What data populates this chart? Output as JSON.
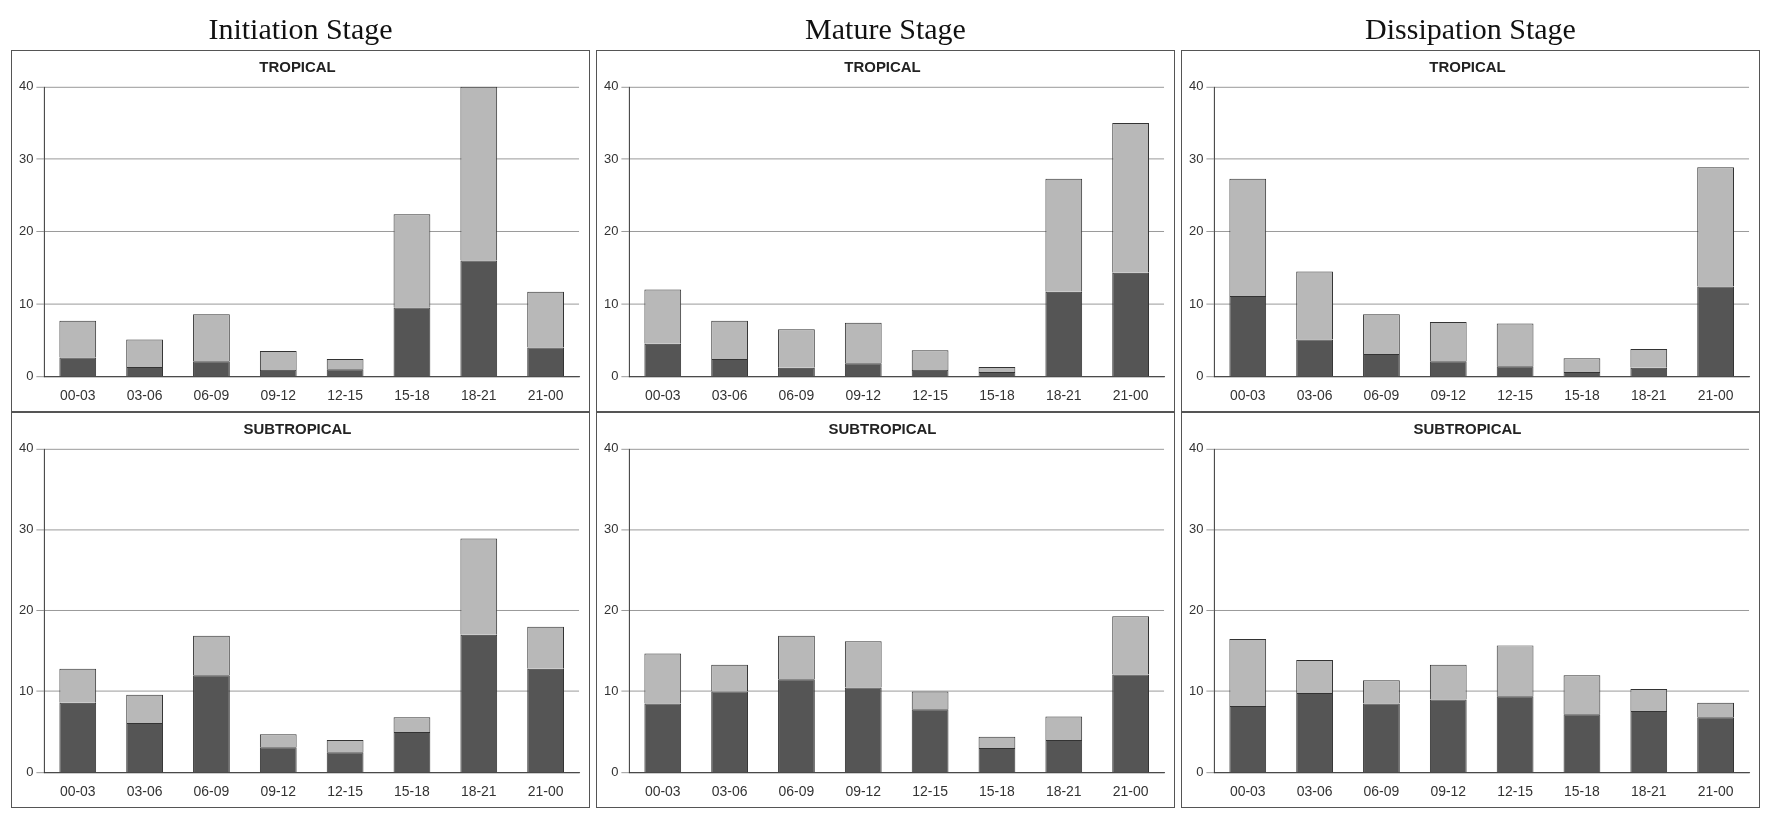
{
  "chart_data": [
    {
      "type": "bar",
      "title": "Initiation Stage",
      "subtitle": "TROPICAL",
      "stacked": true,
      "categories": [
        "00-03",
        "03-06",
        "06-09",
        "09-12",
        "12-15",
        "15-18",
        "18-21",
        "21-00"
      ],
      "series": [
        {
          "color": "#555555",
          "values": [
            2.6,
            1.3,
            2.1,
            0.9,
            1.0,
            9.5,
            16,
            4.0
          ]
        },
        {
          "color": "#b8b8b8",
          "values": [
            5.1,
            3.8,
            6.5,
            2.6,
            1.4,
            12.9,
            24,
            7.7
          ]
        }
      ],
      "ylim": [
        0,
        40
      ],
      "yticks": [
        0,
        10,
        20,
        30,
        40
      ],
      "grid": "y"
    },
    {
      "type": "bar",
      "title": "Mature Stage",
      "subtitle": "TROPICAL",
      "stacked": true,
      "categories": [
        "00-03",
        "03-06",
        "06-09",
        "09-12",
        "12-15",
        "15-18",
        "18-21",
        "21-00"
      ],
      "series": [
        {
          "color": "#555555",
          "values": [
            4.5,
            2.4,
            1.2,
            1.8,
            0.9,
            0.6,
            11.7,
            14.3
          ]
        },
        {
          "color": "#b8b8b8",
          "values": [
            7.5,
            5.3,
            5.3,
            5.6,
            2.7,
            0.7,
            15.6,
            20.7
          ]
        }
      ],
      "ylim": [
        0,
        40
      ],
      "yticks": [
        0,
        10,
        20,
        30,
        40
      ],
      "grid": "y"
    },
    {
      "type": "bar",
      "title": "Dissipation Stage",
      "subtitle": "TROPICAL",
      "stacked": true,
      "categories": [
        "00-03",
        "03-06",
        "06-09",
        "09-12",
        "12-15",
        "15-18",
        "18-21",
        "21-00"
      ],
      "series": [
        {
          "color": "#555555",
          "values": [
            11.1,
            5.1,
            3.1,
            2.1,
            1.4,
            0.6,
            1.2,
            12.4
          ]
        },
        {
          "color": "#b8b8b8",
          "values": [
            16.2,
            9.4,
            5.5,
            5.4,
            5.9,
            1.9,
            2.6,
            16.5
          ]
        }
      ],
      "ylim": [
        0,
        40
      ],
      "yticks": [
        0,
        10,
        20,
        30,
        40
      ],
      "grid": "y"
    },
    {
      "type": "bar",
      "title": "SUBTROPICAL",
      "stacked": true,
      "categories": [
        "00-03",
        "03-06",
        "06-09",
        "09-12",
        "12-15",
        "15-18",
        "18-21",
        "21-00"
      ],
      "series": [
        {
          "color": "#555555",
          "values": [
            8.6,
            6.1,
            12.0,
            3.1,
            2.5,
            5.0,
            17.0,
            12.8
          ]
        },
        {
          "color": "#b8b8b8",
          "values": [
            4.2,
            3.5,
            4.9,
            1.6,
            1.5,
            1.8,
            11.9,
            5.2
          ]
        }
      ],
      "ylim": [
        0,
        40
      ],
      "yticks": [
        0,
        10,
        20,
        30,
        40
      ],
      "grid": "y"
    },
    {
      "type": "bar",
      "title": "SUBTROPICAL",
      "stacked": true,
      "categories": [
        "00-03",
        "03-06",
        "06-09",
        "09-12",
        "12-15",
        "15-18",
        "18-21",
        "21-00"
      ],
      "series": [
        {
          "color": "#555555",
          "values": [
            8.5,
            10,
            11.5,
            10.5,
            7.8,
            3.0,
            4.0,
            12.1
          ]
        },
        {
          "color": "#b8b8b8",
          "values": [
            6.2,
            3.3,
            5.4,
            5.7,
            2.2,
            1.4,
            2.9,
            7.2
          ]
        }
      ],
      "ylim": [
        0,
        40
      ],
      "yticks": [
        0,
        10,
        20,
        30,
        40
      ],
      "grid": "y"
    },
    {
      "type": "bar",
      "title": "SUBTROPICAL",
      "stacked": true,
      "categories": [
        "00-03",
        "03-06",
        "06-09",
        "09-12",
        "12-15",
        "15-18",
        "18-21",
        "21-00"
      ],
      "series": [
        {
          "color": "#555555",
          "values": [
            8.2,
            9.8,
            8.5,
            9.0,
            9.4,
            7.2,
            7.6,
            6.8
          ]
        },
        {
          "color": "#b8b8b8",
          "values": [
            8.3,
            4.1,
            2.9,
            4.3,
            6.3,
            4.8,
            2.7,
            1.8
          ]
        }
      ],
      "ylim": [
        0,
        40
      ],
      "yticks": [
        0,
        10,
        20,
        30,
        40
      ],
      "grid": "y"
    }
  ]
}
